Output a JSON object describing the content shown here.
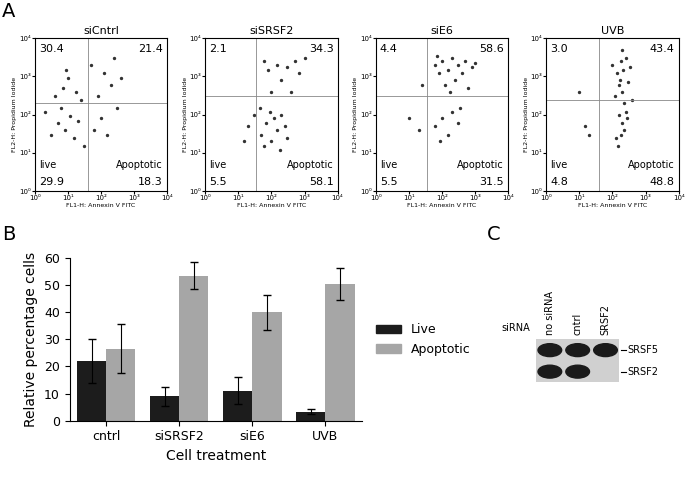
{
  "chart_data": [
    {
      "type": "scatter",
      "panel": "A",
      "title": "siCntrl",
      "x_label": "FL1-H: Annexin V FITC",
      "y_label": "FL2-H: Propidium Iodide",
      "log": true,
      "xlim": [
        1,
        10000
      ],
      "ylim": [
        1,
        10000
      ],
      "xticks": [
        {
          "value": 1,
          "label": "10⁰"
        },
        {
          "value": 10,
          "label": "10¹"
        },
        {
          "value": 100,
          "label": "10²"
        },
        {
          "value": 1000,
          "label": "10³"
        },
        {
          "value": 10000,
          "label": "10⁴"
        }
      ],
      "yticks": [
        {
          "value": 1,
          "label": "10⁰"
        },
        {
          "value": 10,
          "label": "10¹"
        },
        {
          "value": 100,
          "label": "10²"
        },
        {
          "value": 1000,
          "label": "10³"
        },
        {
          "value": 10000,
          "label": "10⁴"
        }
      ],
      "gates": {
        "x": 40,
        "y": 200
      },
      "quadrants": {
        "upper_left": 30.4,
        "upper_right": 21.4,
        "lower_left": 29.9,
        "lower_right": 18.3
      },
      "annotations": {
        "lower_left": "live",
        "lower_right": "Apoptotic"
      },
      "points": [
        [
          3,
          30
        ],
        [
          5,
          60
        ],
        [
          8,
          40
        ],
        [
          12,
          90
        ],
        [
          6,
          150
        ],
        [
          15,
          25
        ],
        [
          20,
          70
        ],
        [
          4,
          300
        ],
        [
          7,
          500
        ],
        [
          10,
          900
        ],
        [
          18,
          400
        ],
        [
          25,
          250
        ],
        [
          9,
          1500
        ],
        [
          60,
          40
        ],
        [
          100,
          80
        ],
        [
          150,
          30
        ],
        [
          80,
          300
        ],
        [
          200,
          600
        ],
        [
          120,
          1200
        ],
        [
          300,
          150
        ],
        [
          50,
          2000
        ],
        [
          250,
          3000
        ],
        [
          400,
          900
        ],
        [
          2,
          120
        ],
        [
          30,
          15
        ]
      ]
    },
    {
      "type": "scatter",
      "panel": null,
      "title": "siSRSF2",
      "x_label": "FL1-H: Annexin V FITC",
      "y_label": "FL2-H: Propidium Iodide",
      "log": true,
      "xlim": [
        1,
        10000
      ],
      "ylim": [
        1,
        10000
      ],
      "xticks": [
        {
          "value": 1,
          "label": "10⁰"
        },
        {
          "value": 10,
          "label": "10¹"
        },
        {
          "value": 100,
          "label": "10²"
        },
        {
          "value": 1000,
          "label": "10³"
        },
        {
          "value": 10000,
          "label": "10⁴"
        }
      ],
      "yticks": [
        {
          "value": 1,
          "label": "10⁰"
        },
        {
          "value": 10,
          "label": "10¹"
        },
        {
          "value": 100,
          "label": "10²"
        },
        {
          "value": 1000,
          "label": "10³"
        },
        {
          "value": 10000,
          "label": "10⁴"
        }
      ],
      "gates": {
        "x": 35,
        "y": 300
      },
      "quadrants": {
        "upper_left": 2.1,
        "upper_right": 34.3,
        "lower_left": 5.5,
        "lower_right": 58.1
      },
      "annotations": {
        "lower_left": "live",
        "lower_right": "Apoptotic"
      },
      "points": [
        [
          50,
          30
        ],
        [
          70,
          60
        ],
        [
          100,
          20
        ],
        [
          120,
          80
        ],
        [
          150,
          40
        ],
        [
          200,
          100
        ],
        [
          90,
          120
        ],
        [
          60,
          15
        ],
        [
          250,
          50
        ],
        [
          300,
          25
        ],
        [
          80,
          1500
        ],
        [
          150,
          2000
        ],
        [
          300,
          1800
        ],
        [
          500,
          2500
        ],
        [
          700,
          1200
        ],
        [
          200,
          800
        ],
        [
          400,
          400
        ],
        [
          100,
          400
        ],
        [
          20,
          50
        ],
        [
          15,
          20
        ],
        [
          30,
          100
        ],
        [
          1000,
          3000
        ],
        [
          60,
          2500
        ],
        [
          45,
          150
        ],
        [
          180,
          12
        ]
      ]
    },
    {
      "type": "scatter",
      "panel": null,
      "title": "siE6",
      "x_label": "FL1-H: Annexin V FITC",
      "y_label": "FL2-H: Propidium Iodide",
      "log": true,
      "xlim": [
        1,
        10000
      ],
      "ylim": [
        1,
        10000
      ],
      "xticks": [
        {
          "value": 1,
          "label": "10⁰"
        },
        {
          "value": 10,
          "label": "10¹"
        },
        {
          "value": 100,
          "label": "10²"
        },
        {
          "value": 1000,
          "label": "10³"
        },
        {
          "value": 10000,
          "label": "10⁴"
        }
      ],
      "yticks": [
        {
          "value": 1,
          "label": "10⁰"
        },
        {
          "value": 10,
          "label": "10¹"
        },
        {
          "value": 100,
          "label": "10²"
        },
        {
          "value": 1000,
          "label": "10³"
        },
        {
          "value": 10000,
          "label": "10⁴"
        }
      ],
      "gates": {
        "x": 35,
        "y": 300
      },
      "quadrants": {
        "upper_left": 4.4,
        "upper_right": 58.6,
        "lower_left": 5.5,
        "lower_right": 31.5
      },
      "annotations": {
        "lower_left": "live",
        "lower_right": "Apoptotic"
      },
      "points": [
        [
          60,
          2000
        ],
        [
          100,
          2500
        ],
        [
          150,
          1500
        ],
        [
          200,
          3000
        ],
        [
          300,
          2000
        ],
        [
          500,
          2500
        ],
        [
          800,
          1800
        ],
        [
          400,
          1200
        ],
        [
          250,
          800
        ],
        [
          120,
          600
        ],
        [
          80,
          1200
        ],
        [
          1000,
          2200
        ],
        [
          60,
          50
        ],
        [
          100,
          80
        ],
        [
          150,
          30
        ],
        [
          200,
          120
        ],
        [
          90,
          20
        ],
        [
          300,
          60
        ],
        [
          20,
          40
        ],
        [
          10,
          80
        ],
        [
          25,
          600
        ],
        [
          180,
          400
        ],
        [
          600,
          500
        ],
        [
          70,
          3500
        ],
        [
          350,
          150
        ]
      ]
    },
    {
      "type": "scatter",
      "panel": null,
      "title": "UVB",
      "x_label": "FL1-H: Annexin V FITC",
      "y_label": "FL2-H: Propidium Iodide",
      "log": true,
      "xlim": [
        1,
        10000
      ],
      "ylim": [
        1,
        10000
      ],
      "xticks": [
        {
          "value": 1,
          "label": "10⁰"
        },
        {
          "value": 10,
          "label": "10¹"
        },
        {
          "value": 100,
          "label": "10²"
        },
        {
          "value": 1000,
          "label": "10³"
        },
        {
          "value": 10000,
          "label": "10⁴"
        }
      ],
      "yticks": [
        {
          "value": 1,
          "label": "10⁰"
        },
        {
          "value": 10,
          "label": "10¹"
        },
        {
          "value": 100,
          "label": "10²"
        },
        {
          "value": 1000,
          "label": "10³"
        },
        {
          "value": 10000,
          "label": "10⁴"
        }
      ],
      "gates": {
        "x": 40,
        "y": 250
      },
      "quadrants": {
        "upper_left": 3.0,
        "upper_right": 43.4,
        "lower_left": 4.8,
        "lower_right": 48.8
      },
      "annotations": {
        "lower_left": "live",
        "lower_right": "Apoptotic"
      },
      "points": [
        [
          150,
          15
        ],
        [
          180,
          30
        ],
        [
          200,
          60
        ],
        [
          160,
          100
        ],
        [
          220,
          200
        ],
        [
          190,
          400
        ],
        [
          170,
          800
        ],
        [
          210,
          1500
        ],
        [
          180,
          2500
        ],
        [
          250,
          3000
        ],
        [
          140,
          1200
        ],
        [
          300,
          700
        ],
        [
          120,
          300
        ],
        [
          260,
          120
        ],
        [
          230,
          40
        ],
        [
          100,
          2000
        ],
        [
          350,
          1800
        ],
        [
          200,
          5000
        ],
        [
          15,
          50
        ],
        [
          20,
          30
        ],
        [
          10,
          400
        ],
        [
          400,
          250
        ],
        [
          130,
          25
        ],
        [
          280,
          80
        ],
        [
          160,
          600
        ]
      ]
    },
    {
      "type": "bar",
      "panel": "B",
      "x_label": "Cell treatment",
      "y_label": "Relative percentage cells",
      "categories": [
        "cntrl",
        "siSRSF2",
        "siE6",
        "UVB"
      ],
      "series": [
        {
          "name": "Live",
          "color": "#1c1c1c",
          "values": [
            22,
            9,
            11,
            3.3
          ],
          "errors": [
            8,
            3.5,
            5,
            1
          ]
        },
        {
          "name": "Apoptotic",
          "color": "#a6a6a6",
          "values": [
            26.5,
            53.5,
            40,
            50.5
          ],
          "errors": [
            9,
            5,
            6.5,
            6
          ]
        }
      ],
      "ylim": [
        0,
        60
      ],
      "yticks": [
        0,
        10,
        20,
        30,
        40,
        50,
        60
      ],
      "legend": "right"
    },
    {
      "type": "blot",
      "panel": "C",
      "row_label": "siRNA",
      "lanes": [
        "no siRNA",
        "cntrl",
        "SRSF2"
      ],
      "bands": [
        {
          "name": "SRSF5",
          "present": [
            true,
            true,
            true
          ]
        },
        {
          "name": "SRSF2",
          "present": [
            true,
            true,
            false
          ]
        }
      ]
    }
  ]
}
